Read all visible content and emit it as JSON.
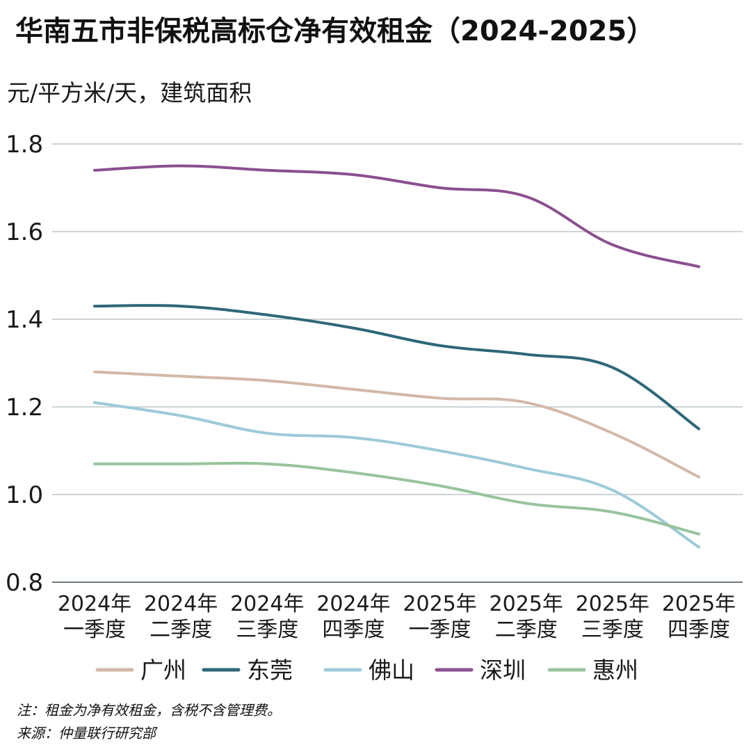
{
  "chart_data": {
    "type": "line",
    "title": "华南五市非保税高标仓净有效租金（2024-2025）",
    "ylabel": "元/平方米/天，建筑面积",
    "xlabel": "",
    "ylim": [
      0.8,
      1.8
    ],
    "yticks": [
      "0.8",
      "1.0",
      "1.2",
      "1.4",
      "1.6",
      "1.8"
    ],
    "grid": true,
    "legend_position": "bottom",
    "categories": [
      [
        "2024年",
        "一季度"
      ],
      [
        "2024年",
        "二季度"
      ],
      [
        "2024年",
        "三季度"
      ],
      [
        "2024年",
        "四季度"
      ],
      [
        "2025年",
        "一季度"
      ],
      [
        "2025年",
        "二季度"
      ],
      [
        "2025年",
        "三季度"
      ],
      [
        "2025年",
        "四季度"
      ]
    ],
    "series": [
      {
        "name": "广州",
        "color": "#d2b8a8",
        "values": [
          1.28,
          1.27,
          1.26,
          1.24,
          1.22,
          1.21,
          1.14,
          1.04
        ]
      },
      {
        "name": "东莞",
        "color": "#2d6779",
        "values": [
          1.43,
          1.43,
          1.41,
          1.38,
          1.34,
          1.32,
          1.29,
          1.15
        ]
      },
      {
        "name": "佛山",
        "color": "#9ccad8",
        "values": [
          1.21,
          1.18,
          1.14,
          1.13,
          1.1,
          1.06,
          1.01,
          0.88
        ]
      },
      {
        "name": "深圳",
        "color": "#8b4f8f",
        "values": [
          1.74,
          1.75,
          1.74,
          1.73,
          1.7,
          1.68,
          1.57,
          1.52
        ]
      },
      {
        "name": "惠州",
        "color": "#97c49c",
        "values": [
          1.07,
          1.07,
          1.07,
          1.05,
          1.02,
          0.98,
          0.96,
          0.91
        ]
      }
    ],
    "notes": [
      "注：租金为净有效租金，含税不含管理费。",
      "来源：仲量联行研究部"
    ]
  }
}
